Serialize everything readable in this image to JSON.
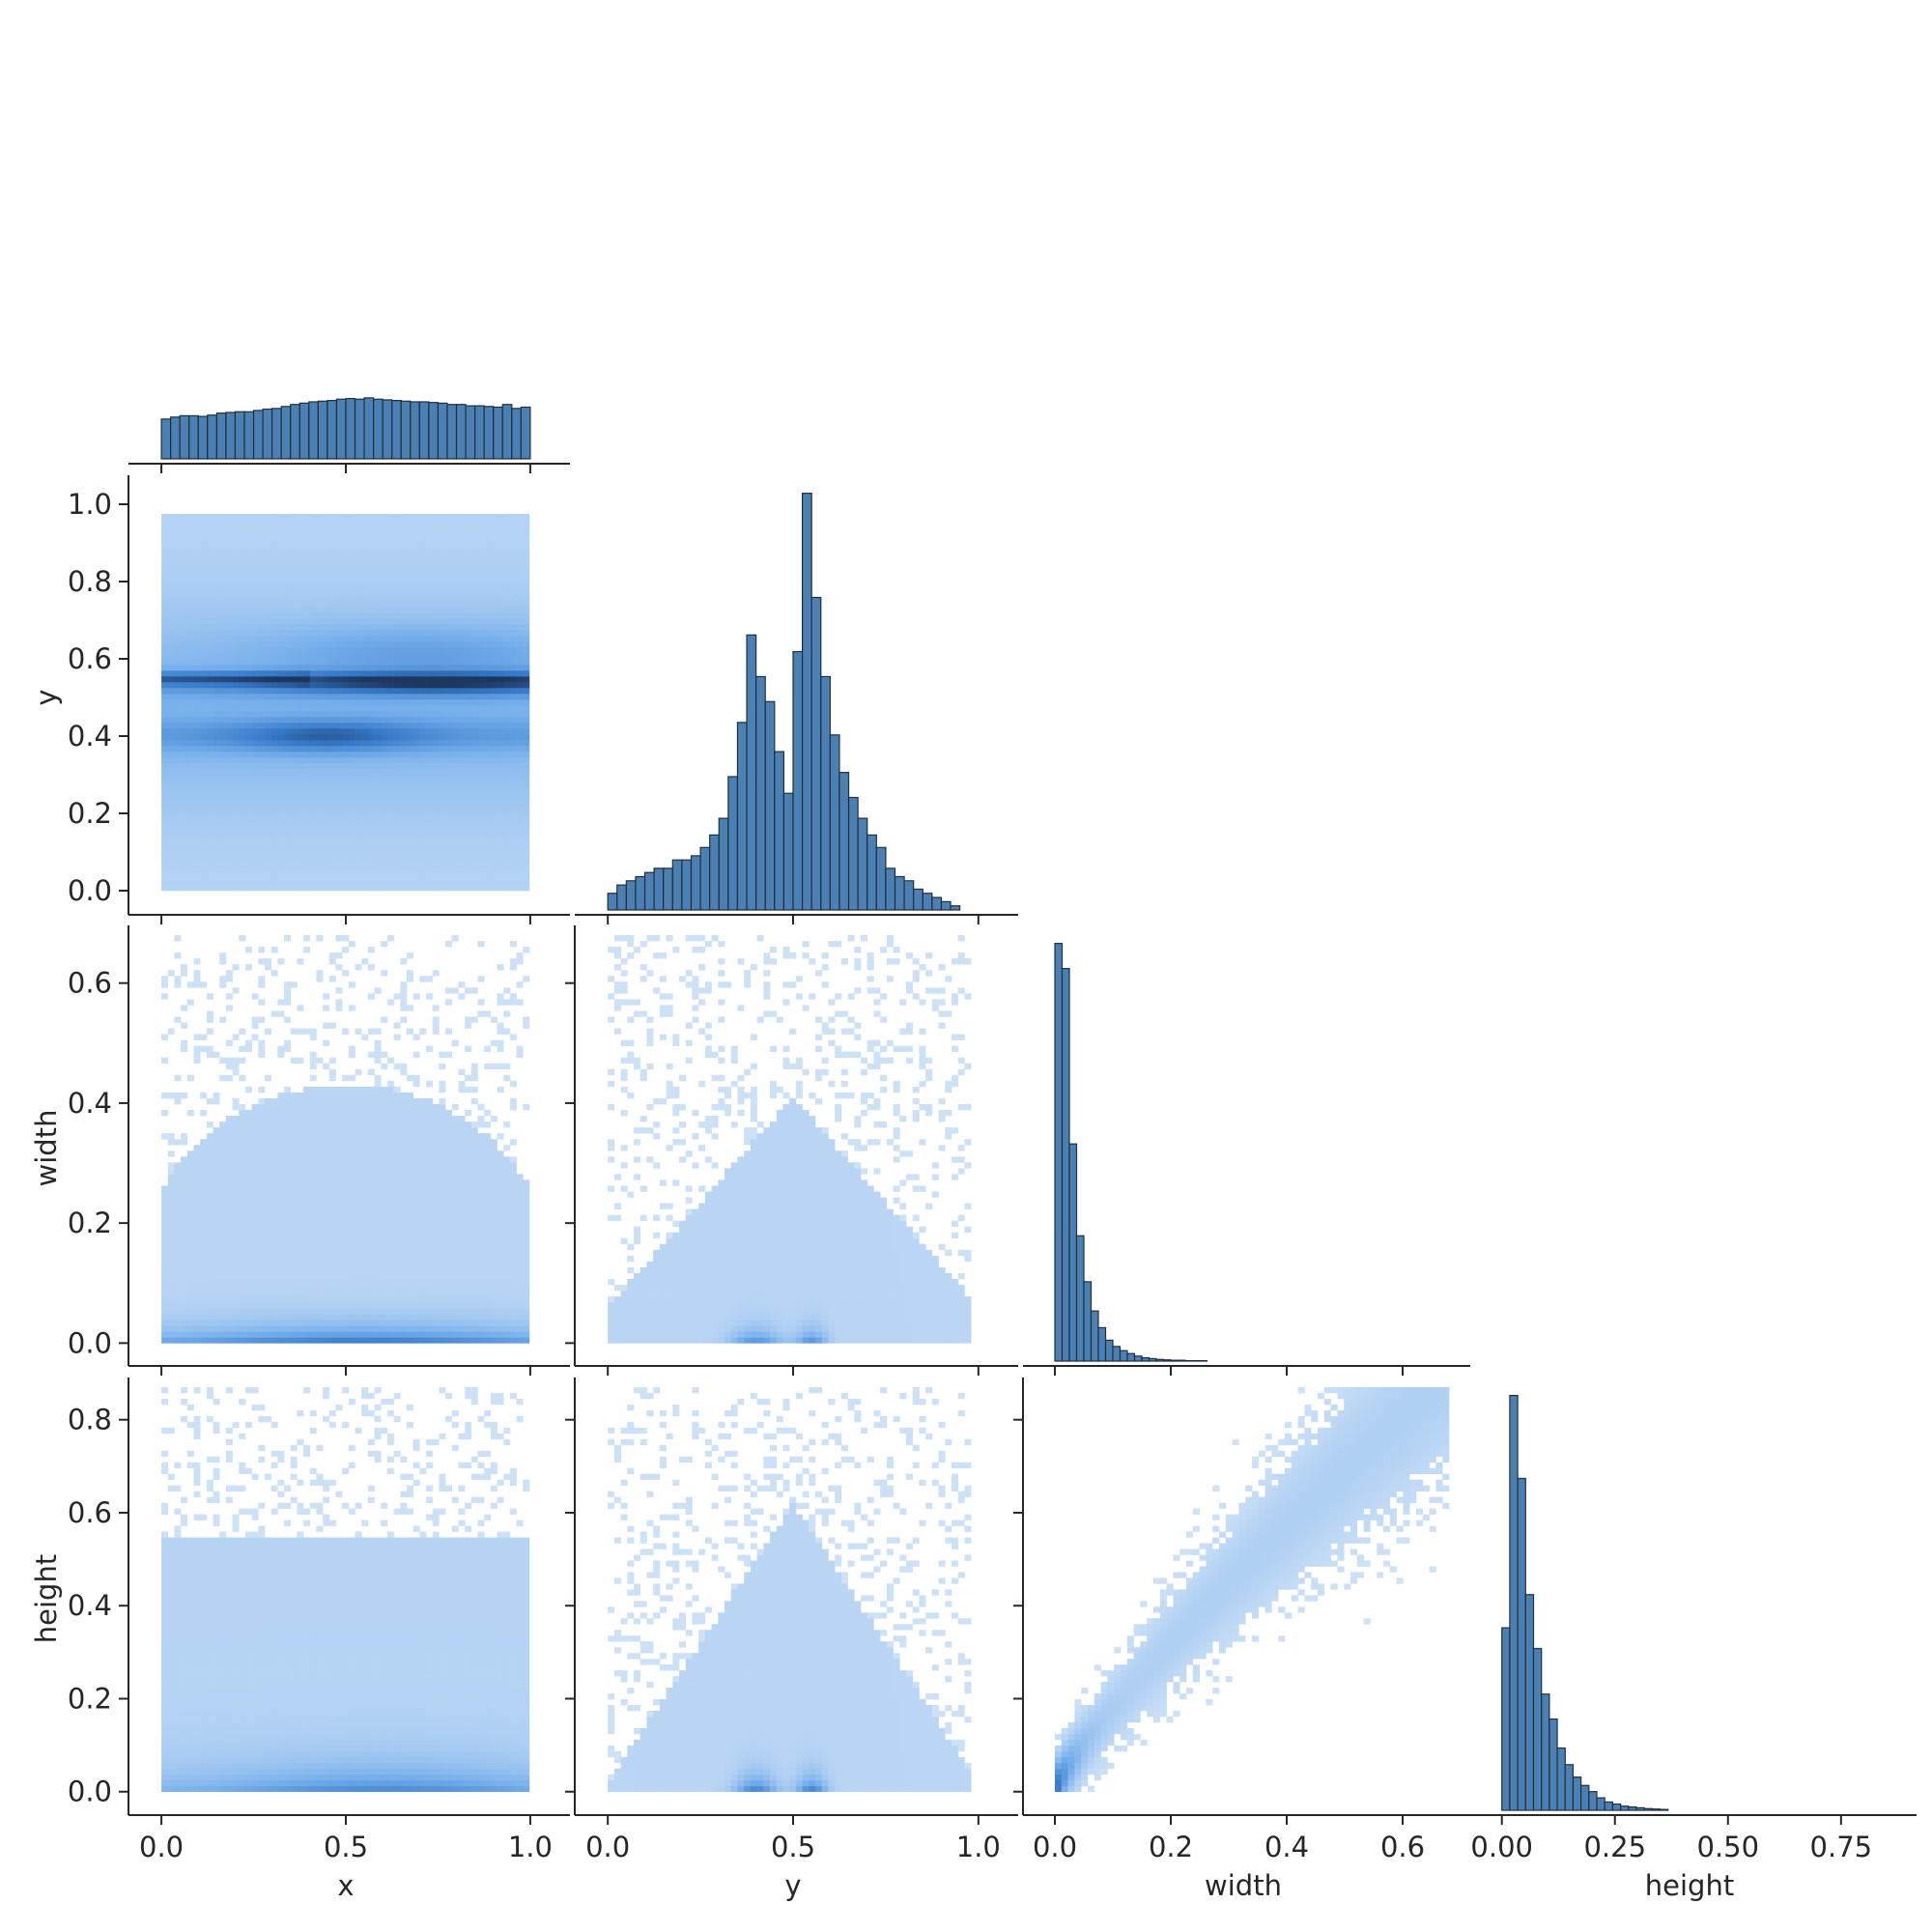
{
  "chart_data": {
    "type": "pairplot",
    "layout": "corner",
    "variables": [
      "x",
      "y",
      "width",
      "height"
    ],
    "color": "#4c80b2",
    "axes": {
      "x": {
        "label": "x",
        "range": [
          -0.05,
          1.05
        ],
        "ticks": [
          0.0,
          0.5,
          1.0
        ],
        "tick_labels": [
          "0.0",
          "0.5",
          "1.0"
        ]
      },
      "y": {
        "label": "y",
        "range": [
          -0.05,
          1.05
        ],
        "ticks": [
          0.0,
          0.2,
          0.4,
          0.6,
          0.8,
          1.0
        ],
        "tick_labels": [
          "0.0",
          "0.2",
          "0.4",
          "0.6",
          "0.8",
          "1.0"
        ],
        "x_ticks": [
          0.0,
          0.5,
          1.0
        ],
        "x_tick_labels": [
          "0.0",
          "0.5",
          "1.0"
        ]
      },
      "width": {
        "label": "width",
        "range": [
          -0.03,
          0.68
        ],
        "ticks": [
          0.0,
          0.2,
          0.4,
          0.6
        ],
        "tick_labels": [
          "0.0",
          "0.2",
          "0.4",
          "0.6"
        ]
      },
      "height": {
        "label": "height",
        "range": [
          -0.04,
          0.87
        ],
        "ticks": [
          0.0,
          0.2,
          0.4,
          0.6,
          0.8
        ],
        "tick_labels": [
          "0.0",
          "0.2",
          "0.4",
          "0.6",
          "0.8"
        ],
        "x_ticks": [
          0.0,
          0.25,
          0.5,
          0.75
        ],
        "x_tick_labels": [
          "0.00",
          "0.25",
          "0.50",
          "0.75"
        ]
      }
    },
    "diagonal_histograms": {
      "x": {
        "bin_start": 0.0,
        "bin_width": 0.025,
        "counts": [
          0.6,
          0.63,
          0.65,
          0.65,
          0.64,
          0.66,
          0.69,
          0.7,
          0.71,
          0.71,
          0.73,
          0.75,
          0.76,
          0.79,
          0.82,
          0.84,
          0.86,
          0.87,
          0.88,
          0.9,
          0.91,
          0.9,
          0.92,
          0.9,
          0.89,
          0.88,
          0.87,
          0.86,
          0.86,
          0.85,
          0.84,
          0.82,
          0.82,
          0.8,
          0.8,
          0.79,
          0.78,
          0.82,
          0.76,
          0.78
        ]
      },
      "y": {
        "bin_start": 0.0,
        "bin_width": 0.025,
        "counts": [
          0.04,
          0.06,
          0.07,
          0.08,
          0.09,
          0.1,
          0.1,
          0.12,
          0.12,
          0.13,
          0.15,
          0.18,
          0.22,
          0.32,
          0.45,
          0.66,
          0.56,
          0.5,
          0.38,
          0.28,
          0.62,
          1.0,
          0.75,
          0.56,
          0.42,
          0.33,
          0.27,
          0.22,
          0.18,
          0.15,
          0.1,
          0.08,
          0.07,
          0.05,
          0.04,
          0.03,
          0.02,
          0.01,
          0.0,
          0.0
        ]
      },
      "width": {
        "bin_start": 0.0,
        "bin_width": 0.0125,
        "counts": [
          1.0,
          0.94,
          0.52,
          0.3,
          0.19,
          0.12,
          0.08,
          0.05,
          0.035,
          0.025,
          0.018,
          0.012,
          0.008,
          0.006,
          0.004,
          0.003,
          0.002,
          0.002,
          0.001,
          0.001,
          0.001
        ]
      },
      "height": {
        "bin_start": 0.0,
        "bin_width": 0.0175,
        "counts": [
          0.44,
          1.0,
          0.8,
          0.52,
          0.39,
          0.28,
          0.22,
          0.15,
          0.11,
          0.08,
          0.06,
          0.045,
          0.03,
          0.02,
          0.015,
          0.01,
          0.008,
          0.006,
          0.004,
          0.003,
          0.002
        ]
      }
    },
    "bivariate_density": [
      {
        "x": "x",
        "y": "y",
        "kind": "hist2d",
        "description_points": [
          [
            0.0,
            0.55,
            0.35
          ],
          [
            0.45,
            0.55,
            0.5
          ],
          [
            0.7,
            0.53,
            0.8
          ],
          [
            0.9,
            0.53,
            0.75
          ],
          [
            0.2,
            0.4,
            0.45
          ],
          [
            0.45,
            0.4,
            0.65
          ],
          [
            0.55,
            0.39,
            0.55
          ]
        ]
      },
      {
        "x": "x",
        "y": "width",
        "kind": "hist2d"
      },
      {
        "x": "y",
        "y": "width",
        "kind": "hist2d"
      },
      {
        "x": "x",
        "y": "height",
        "kind": "hist2d"
      },
      {
        "x": "y",
        "y": "height",
        "kind": "hist2d"
      },
      {
        "x": "width",
        "y": "height",
        "kind": "hist2d"
      }
    ]
  }
}
